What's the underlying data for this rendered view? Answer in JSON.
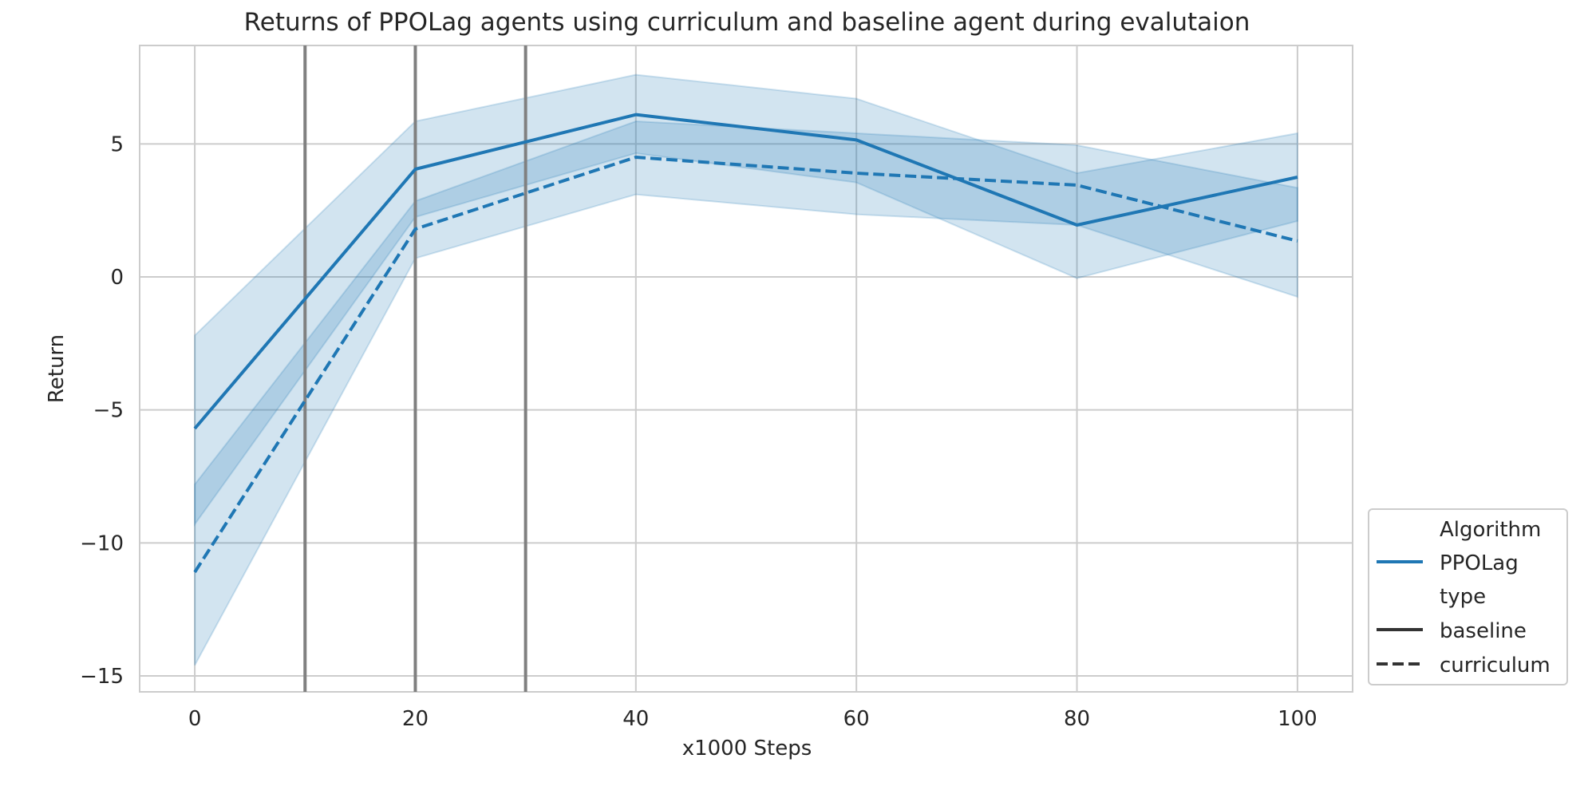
{
  "chart_data": {
    "type": "line",
    "title": "Returns of PPOLag agents using curriculum and baseline agent during evalutaion",
    "xlabel": "x1000 Steps",
    "ylabel": "Return",
    "x": [
      0,
      20,
      40,
      60,
      80,
      100
    ],
    "xlim": [
      -5,
      105
    ],
    "ylim": [
      -15.6,
      8.7
    ],
    "xticks": [
      0,
      20,
      40,
      60,
      80,
      100
    ],
    "yticks": [
      5,
      0,
      -5,
      -10,
      -15
    ],
    "ytick_labels": [
      "5",
      "0",
      "−5",
      "−10",
      "−15"
    ],
    "grid": true,
    "vertical_lines": [
      10,
      20,
      30
    ],
    "colors": {
      "series": "#1f77b4",
      "band": "#1f77b4",
      "vline": "#808080",
      "grid": "#cccccc",
      "legend_style": "#333333"
    },
    "series": [
      {
        "type": "baseline",
        "style": "solid",
        "values": [
          -5.7,
          4.05,
          6.1,
          5.15,
          1.95,
          3.75
        ],
        "ci_low": [
          -9.3,
          2.25,
          4.65,
          3.55,
          -0.05,
          2.1
        ],
        "ci_high": [
          -2.2,
          5.85,
          7.6,
          6.7,
          3.9,
          5.4
        ]
      },
      {
        "type": "curriculum",
        "style": "dashed",
        "values": [
          -11.1,
          1.8,
          4.5,
          3.9,
          3.45,
          1.35
        ],
        "ci_low": [
          -14.6,
          0.7,
          3.1,
          2.35,
          1.95,
          -0.75
        ],
        "ci_high": [
          -7.8,
          2.85,
          5.85,
          5.4,
          4.95,
          3.35
        ]
      }
    ],
    "legend": {
      "placement": "lower-right, outside",
      "hue_title": "Algorithm",
      "hue_entries": [
        "PPOLag"
      ],
      "style_title": "type",
      "style_entries": [
        "baseline",
        "curriculum"
      ]
    }
  }
}
